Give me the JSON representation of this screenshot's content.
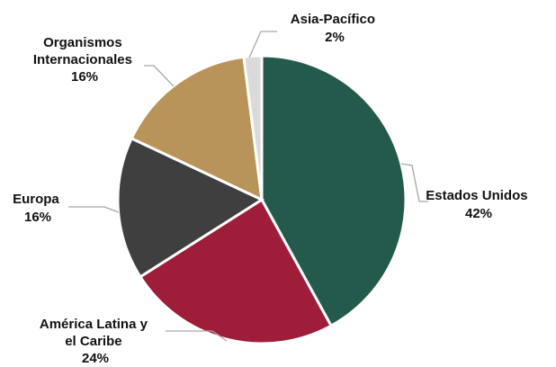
{
  "chart_data": {
    "type": "pie",
    "title": "",
    "start_angle": "12 o'clock",
    "direction": "clockwise",
    "slices": [
      {
        "label": "Estados Unidos",
        "value": 42,
        "value_label": "42%",
        "color": "#235A4C"
      },
      {
        "label": "América Latina y el Caribe",
        "value": 24,
        "value_label": "24%",
        "color": "#9E1E3A"
      },
      {
        "label": "Europa",
        "value": 16,
        "value_label": "16%",
        "color": "#3F3F3F"
      },
      {
        "label": "Organismos Internacionales",
        "value": 16,
        "value_label": "16%",
        "color": "#B9945A"
      },
      {
        "label": "Asia-Pacífico",
        "value": 2,
        "value_label": "2%",
        "color": "#DADADA"
      }
    ]
  }
}
